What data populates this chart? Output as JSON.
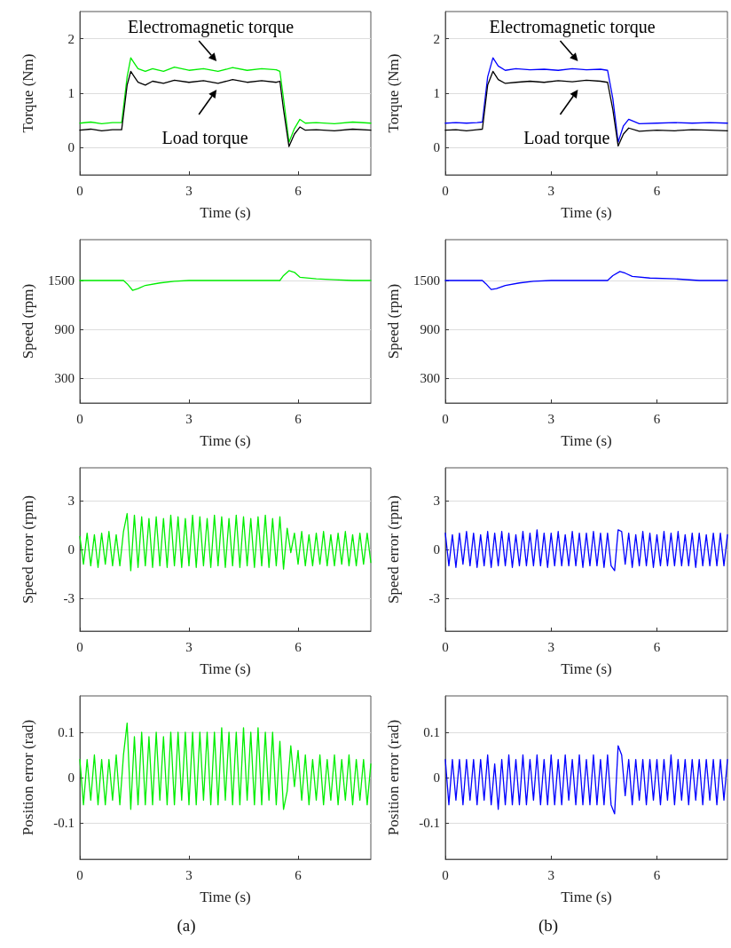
{
  "chart_data": [
    {
      "type": "line",
      "xlabel": "Time (s)",
      "ylabel": "Torque (Nm)",
      "xlim": [
        0,
        8
      ],
      "xticks": [
        0,
        3,
        6
      ],
      "ylim": [
        -0.5,
        2.5
      ],
      "yticks": [
        0,
        1,
        2
      ],
      "grid": "y",
      "marker": "none",
      "series": [
        {
          "color": "#00ee00",
          "x": [
            0,
            0.3,
            0.6,
            0.9,
            1.15,
            1.3,
            1.4,
            1.5,
            1.6,
            1.8,
            2.0,
            2.3,
            2.6,
            3.0,
            3.4,
            3.8,
            4.2,
            4.6,
            5.0,
            5.4,
            5.5,
            5.6,
            5.75,
            5.9,
            6.05,
            6.2,
            6.5,
            7.0,
            7.5,
            8.0
          ],
          "values": [
            0.45,
            0.47,
            0.44,
            0.46,
            0.46,
            1.3,
            1.65,
            1.55,
            1.45,
            1.4,
            1.45,
            1.4,
            1.48,
            1.42,
            1.45,
            1.4,
            1.47,
            1.42,
            1.45,
            1.43,
            1.4,
            0.9,
            0.1,
            0.35,
            0.52,
            0.45,
            0.46,
            0.44,
            0.47,
            0.45
          ]
        },
        {
          "color": "#000000",
          "x": [
            0,
            0.3,
            0.6,
            0.9,
            1.15,
            1.3,
            1.4,
            1.5,
            1.6,
            1.8,
            2.0,
            2.3,
            2.6,
            3.0,
            3.4,
            3.8,
            4.2,
            4.6,
            5.0,
            5.4,
            5.5,
            5.6,
            5.75,
            5.9,
            6.05,
            6.2,
            6.5,
            7.0,
            7.5,
            8.0
          ],
          "values": [
            0.32,
            0.34,
            0.31,
            0.33,
            0.33,
            1.15,
            1.4,
            1.3,
            1.2,
            1.15,
            1.22,
            1.18,
            1.24,
            1.2,
            1.23,
            1.18,
            1.25,
            1.2,
            1.23,
            1.2,
            1.22,
            0.7,
            0.02,
            0.25,
            0.38,
            0.32,
            0.33,
            0.31,
            0.34,
            0.32
          ]
        }
      ],
      "annotations": [
        "Electromagnetic torque",
        "Load torque"
      ]
    },
    {
      "type": "line",
      "xlabel": "Time (s)",
      "ylabel": "Torque (Nm)",
      "xlim": [
        0,
        8
      ],
      "xticks": [
        0,
        3,
        6
      ],
      "ylim": [
        -0.5,
        2.5
      ],
      "yticks": [
        0,
        1,
        2
      ],
      "grid": "y",
      "marker": "none",
      "series": [
        {
          "color": "#0000ff",
          "x": [
            0,
            0.3,
            0.6,
            0.9,
            1.05,
            1.2,
            1.35,
            1.5,
            1.7,
            2.0,
            2.4,
            2.8,
            3.2,
            3.6,
            4.0,
            4.4,
            4.6,
            4.75,
            4.9,
            5.05,
            5.2,
            5.5,
            6.0,
            6.5,
            7.0,
            7.5,
            8.0
          ],
          "values": [
            0.45,
            0.46,
            0.45,
            0.46,
            0.47,
            1.3,
            1.65,
            1.5,
            1.42,
            1.45,
            1.43,
            1.44,
            1.42,
            1.45,
            1.43,
            1.44,
            1.42,
            0.9,
            0.1,
            0.4,
            0.52,
            0.44,
            0.45,
            0.46,
            0.45,
            0.46,
            0.45
          ]
        },
        {
          "color": "#000000",
          "x": [
            0,
            0.3,
            0.6,
            0.9,
            1.05,
            1.2,
            1.35,
            1.5,
            1.7,
            2.0,
            2.4,
            2.8,
            3.2,
            3.6,
            4.0,
            4.4,
            4.6,
            4.75,
            4.9,
            5.05,
            5.2,
            5.5,
            6.0,
            6.5,
            7.0,
            7.5,
            8.0
          ],
          "values": [
            0.32,
            0.33,
            0.31,
            0.33,
            0.34,
            1.15,
            1.4,
            1.25,
            1.18,
            1.2,
            1.22,
            1.2,
            1.23,
            1.21,
            1.24,
            1.22,
            1.2,
            0.7,
            0.03,
            0.25,
            0.36,
            0.3,
            0.32,
            0.31,
            0.33,
            0.32,
            0.31
          ]
        }
      ],
      "annotations": [
        "Electromagnetic torque",
        "Load torque"
      ]
    },
    {
      "type": "line",
      "xlabel": "Time (s)",
      "ylabel": "Speed (rpm)",
      "xlim": [
        0,
        8
      ],
      "xticks": [
        0,
        3,
        6
      ],
      "ylim": [
        0,
        2000
      ],
      "yticks": [
        300,
        900,
        1500
      ],
      "grid": "y",
      "marker": "none",
      "series": [
        {
          "color": "#00ee00",
          "x": [
            0,
            1.2,
            1.3,
            1.45,
            1.6,
            1.8,
            2.2,
            2.6,
            3.0,
            4.0,
            5.0,
            5.5,
            5.6,
            5.75,
            5.9,
            6.05,
            6.5,
            7.0,
            7.5,
            8.0
          ],
          "values": [
            1500,
            1500,
            1460,
            1380,
            1400,
            1440,
            1470,
            1490,
            1500,
            1500,
            1500,
            1500,
            1560,
            1620,
            1600,
            1540,
            1520,
            1510,
            1500,
            1500
          ]
        }
      ]
    },
    {
      "type": "line",
      "xlabel": "Time (s)",
      "ylabel": "Speed (rpm)",
      "xlim": [
        0,
        8
      ],
      "xticks": [
        0,
        3,
        6
      ],
      "ylim": [
        0,
        2000
      ],
      "yticks": [
        300,
        900,
        1500
      ],
      "grid": "y",
      "marker": "none",
      "series": [
        {
          "color": "#0000ff",
          "x": [
            0,
            1.05,
            1.15,
            1.3,
            1.45,
            1.7,
            2.1,
            2.5,
            3.0,
            4.0,
            4.6,
            4.75,
            4.95,
            5.1,
            5.3,
            5.8,
            6.5,
            7.2,
            8.0
          ],
          "values": [
            1500,
            1500,
            1460,
            1390,
            1400,
            1440,
            1470,
            1490,
            1500,
            1500,
            1500,
            1560,
            1610,
            1590,
            1550,
            1530,
            1520,
            1500,
            1500
          ]
        }
      ]
    },
    {
      "type": "line",
      "xlabel": "Time (s)",
      "ylabel": "Speed error (rpm)",
      "xlim": [
        0,
        8
      ],
      "xticks": [
        0,
        3,
        6
      ],
      "ylim": [
        -5,
        5
      ],
      "yticks": [
        -3,
        0,
        3
      ],
      "grid": "y",
      "marker": "none",
      "x": [
        0,
        0.1,
        0.2,
        0.3,
        0.4,
        0.5,
        0.6,
        0.7,
        0.8,
        0.9,
        1.0,
        1.1,
        1.2,
        1.3,
        1.4,
        1.5,
        1.6,
        1.7,
        1.8,
        1.9,
        2.0,
        2.1,
        2.2,
        2.3,
        2.4,
        2.5,
        2.6,
        2.7,
        2.8,
        2.9,
        3.0,
        3.1,
        3.2,
        3.3,
        3.4,
        3.5,
        3.6,
        3.7,
        3.8,
        3.9,
        4.0,
        4.1,
        4.2,
        4.3,
        4.4,
        4.5,
        4.6,
        4.7,
        4.8,
        4.9,
        5.0,
        5.1,
        5.2,
        5.3,
        5.4,
        5.5,
        5.6,
        5.7,
        5.8,
        5.9,
        6.0,
        6.1,
        6.2,
        6.3,
        6.4,
        6.5,
        6.6,
        6.7,
        6.8,
        6.9,
        7.0,
        7.1,
        7.2,
        7.3,
        7.4,
        7.5,
        7.6,
        7.7,
        7.8,
        7.9,
        8.0
      ],
      "series": [
        {
          "color": "#00ee00",
          "values": [
            0.8,
            -0.9,
            1.0,
            -1.0,
            0.9,
            -1.1,
            1.0,
            -0.9,
            1.1,
            -1.0,
            0.9,
            -1.0,
            1.1,
            2.2,
            -1.3,
            2.1,
            -1.1,
            2.0,
            -1.0,
            1.9,
            -1.1,
            2.0,
            -1.0,
            1.9,
            -1.1,
            2.1,
            -1.0,
            2.0,
            -1.1,
            1.9,
            -1.0,
            2.1,
            -1.1,
            2.0,
            -1.0,
            1.9,
            -1.1,
            2.1,
            -1.0,
            2.0,
            -1.1,
            1.9,
            -1.0,
            2.1,
            -1.1,
            2.0,
            -1.0,
            1.9,
            -1.1,
            2.0,
            -1.0,
            2.1,
            -1.1,
            1.9,
            -1.0,
            2.0,
            -1.2,
            1.3,
            -0.2,
            1.0,
            -0.9,
            1.1,
            -1.0,
            0.9,
            -1.0,
            1.0,
            -0.9,
            1.1,
            -1.0,
            0.9,
            -1.0,
            1.0,
            -0.9,
            1.1,
            -1.0,
            0.9,
            -1.0,
            1.0,
            -0.9,
            1.0,
            -0.8
          ]
        }
      ]
    },
    {
      "type": "line",
      "xlabel": "Time (s)",
      "ylabel": "Speed error (rpm)",
      "xlim": [
        0,
        8
      ],
      "xticks": [
        0,
        3,
        6
      ],
      "ylim": [
        -5,
        5
      ],
      "yticks": [
        -3,
        0,
        3
      ],
      "grid": "y",
      "marker": "none",
      "x": [
        0,
        0.1,
        0.2,
        0.3,
        0.4,
        0.5,
        0.6,
        0.7,
        0.8,
        0.9,
        1.0,
        1.1,
        1.2,
        1.3,
        1.4,
        1.5,
        1.6,
        1.7,
        1.8,
        1.9,
        2.0,
        2.1,
        2.2,
        2.3,
        2.4,
        2.5,
        2.6,
        2.7,
        2.8,
        2.9,
        3.0,
        3.1,
        3.2,
        3.3,
        3.4,
        3.5,
        3.6,
        3.7,
        3.8,
        3.9,
        4.0,
        4.1,
        4.2,
        4.3,
        4.4,
        4.5,
        4.6,
        4.7,
        4.8,
        4.9,
        5.0,
        5.1,
        5.2,
        5.3,
        5.4,
        5.5,
        5.6,
        5.7,
        5.8,
        5.9,
        6.0,
        6.1,
        6.2,
        6.3,
        6.4,
        6.5,
        6.6,
        6.7,
        6.8,
        6.9,
        7.0,
        7.1,
        7.2,
        7.3,
        7.4,
        7.5,
        7.6,
        7.7,
        7.8,
        7.9,
        8.0
      ],
      "series": [
        {
          "color": "#0000ff",
          "values": [
            1.0,
            -1.0,
            0.9,
            -1.1,
            1.0,
            -0.9,
            1.1,
            -1.0,
            1.0,
            -1.1,
            0.9,
            -1.0,
            1.1,
            -1.1,
            1.0,
            -1.0,
            1.1,
            -1.0,
            1.0,
            -1.1,
            0.9,
            -1.0,
            1.1,
            -1.0,
            1.0,
            -1.0,
            1.2,
            -1.0,
            1.0,
            -1.1,
            1.0,
            -1.0,
            1.1,
            -1.0,
            0.9,
            -1.0,
            1.1,
            -1.0,
            1.0,
            -1.1,
            1.0,
            -1.0,
            1.1,
            -1.0,
            1.0,
            -1.1,
            1.0,
            -1.0,
            -1.3,
            1.2,
            1.1,
            -0.9,
            1.0,
            -1.1,
            0.9,
            -1.0,
            1.1,
            -1.0,
            1.0,
            -1.1,
            0.9,
            -1.0,
            1.1,
            -1.0,
            1.0,
            -1.0,
            1.1,
            -1.0,
            0.9,
            -1.0,
            1.0,
            -1.1,
            1.0,
            -1.0,
            0.9,
            -1.0,
            1.0,
            -1.0,
            1.0,
            -1.0,
            0.9
          ]
        }
      ]
    },
    {
      "type": "line",
      "xlabel": "Time (s)",
      "ylabel": "Position error (rad)",
      "xlim": [
        0,
        8
      ],
      "xticks": [
        0,
        3,
        6
      ],
      "ylim": [
        -0.18,
        0.18
      ],
      "yticks": [
        -0.1,
        0,
        0.1
      ],
      "grid": "y",
      "marker": "none",
      "x": [
        0,
        0.1,
        0.2,
        0.3,
        0.4,
        0.5,
        0.6,
        0.7,
        0.8,
        0.9,
        1.0,
        1.1,
        1.2,
        1.3,
        1.4,
        1.5,
        1.6,
        1.7,
        1.8,
        1.9,
        2.0,
        2.1,
        2.2,
        2.3,
        2.4,
        2.5,
        2.6,
        2.7,
        2.8,
        2.9,
        3.0,
        3.1,
        3.2,
        3.3,
        3.4,
        3.5,
        3.6,
        3.7,
        3.8,
        3.9,
        4.0,
        4.1,
        4.2,
        4.3,
        4.4,
        4.5,
        4.6,
        4.7,
        4.8,
        4.9,
        5.0,
        5.1,
        5.2,
        5.3,
        5.4,
        5.5,
        5.6,
        5.7,
        5.8,
        5.9,
        6.0,
        6.1,
        6.2,
        6.3,
        6.4,
        6.5,
        6.6,
        6.7,
        6.8,
        6.9,
        7.0,
        7.1,
        7.2,
        7.3,
        7.4,
        7.5,
        7.6,
        7.7,
        7.8,
        7.9,
        8.0
      ],
      "series": [
        {
          "color": "#00ee00",
          "values": [
            0.04,
            -0.06,
            0.04,
            -0.05,
            0.05,
            -0.06,
            0.04,
            -0.06,
            0.04,
            -0.05,
            0.05,
            -0.06,
            0.05,
            0.12,
            -0.07,
            0.09,
            -0.06,
            0.1,
            -0.06,
            0.09,
            -0.06,
            0.1,
            -0.05,
            0.09,
            -0.06,
            0.1,
            -0.06,
            0.1,
            -0.05,
            0.1,
            -0.06,
            0.1,
            -0.06,
            0.1,
            -0.05,
            0.1,
            -0.06,
            0.1,
            -0.06,
            0.11,
            -0.05,
            0.1,
            -0.06,
            0.1,
            -0.06,
            0.11,
            -0.05,
            0.1,
            -0.06,
            0.11,
            -0.06,
            0.1,
            -0.05,
            0.1,
            -0.06,
            0.08,
            -0.07,
            -0.03,
            0.07,
            -0.02,
            0.06,
            -0.05,
            0.05,
            -0.06,
            0.04,
            -0.05,
            0.05,
            -0.06,
            0.04,
            -0.05,
            0.05,
            -0.06,
            0.04,
            -0.05,
            0.05,
            -0.06,
            0.04,
            -0.05,
            0.04,
            -0.06,
            0.03
          ]
        }
      ],
      "annotations": [
        "(a)"
      ]
    },
    {
      "type": "line",
      "xlabel": "Time (s)",
      "ylabel": "Position error (rad)",
      "xlim": [
        0,
        8
      ],
      "xticks": [
        0,
        3,
        6
      ],
      "ylim": [
        -0.18,
        0.18
      ],
      "yticks": [
        -0.1,
        0,
        0.1
      ],
      "grid": "y",
      "marker": "none",
      "x": [
        0,
        0.1,
        0.2,
        0.3,
        0.4,
        0.5,
        0.6,
        0.7,
        0.8,
        0.9,
        1.0,
        1.1,
        1.2,
        1.3,
        1.4,
        1.5,
        1.6,
        1.7,
        1.8,
        1.9,
        2.0,
        2.1,
        2.2,
        2.3,
        2.4,
        2.5,
        2.6,
        2.7,
        2.8,
        2.9,
        3.0,
        3.1,
        3.2,
        3.3,
        3.4,
        3.5,
        3.6,
        3.7,
        3.8,
        3.9,
        4.0,
        4.1,
        4.2,
        4.3,
        4.4,
        4.5,
        4.6,
        4.7,
        4.8,
        4.9,
        5.0,
        5.1,
        5.2,
        5.3,
        5.4,
        5.5,
        5.6,
        5.7,
        5.8,
        5.9,
        6.0,
        6.1,
        6.2,
        6.3,
        6.4,
        6.5,
        6.6,
        6.7,
        6.8,
        6.9,
        7.0,
        7.1,
        7.2,
        7.3,
        7.4,
        7.5,
        7.6,
        7.7,
        7.8,
        7.9,
        8.0
      ],
      "series": [
        {
          "color": "#0000ff",
          "values": [
            0.04,
            -0.06,
            0.04,
            -0.05,
            0.04,
            -0.06,
            0.04,
            -0.05,
            0.04,
            -0.06,
            0.04,
            -0.05,
            0.05,
            -0.06,
            0.03,
            -0.07,
            0.04,
            -0.06,
            0.05,
            -0.06,
            0.04,
            -0.06,
            0.05,
            -0.06,
            0.04,
            -0.05,
            0.05,
            -0.06,
            0.04,
            -0.06,
            0.05,
            -0.06,
            0.04,
            -0.06,
            0.05,
            -0.05,
            0.04,
            -0.06,
            0.05,
            -0.06,
            0.04,
            -0.06,
            0.05,
            -0.06,
            0.04,
            -0.06,
            0.05,
            -0.06,
            -0.08,
            0.07,
            0.05,
            -0.04,
            0.04,
            -0.06,
            0.04,
            -0.05,
            0.04,
            -0.06,
            0.04,
            -0.05,
            0.04,
            -0.06,
            0.04,
            -0.05,
            0.05,
            -0.06,
            0.04,
            -0.05,
            0.04,
            -0.06,
            0.04,
            -0.05,
            0.04,
            -0.06,
            0.04,
            -0.05,
            0.04,
            -0.06,
            0.04,
            -0.05,
            0.04
          ]
        }
      ],
      "annotations": [
        "(b)"
      ]
    }
  ]
}
